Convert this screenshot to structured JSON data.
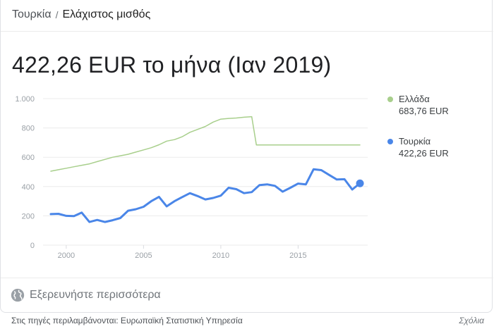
{
  "breadcrumb": {
    "country": "Τουρκία",
    "separator": "/",
    "topic": "Ελάχιστος μισθός"
  },
  "headline": "422,26 EUR το μήνα (Ιαν 2019)",
  "legend": [
    {
      "name": "Ελλάδα",
      "value": "683,76 EUR",
      "color": "#a8cf8c"
    },
    {
      "name": "Τουρκία",
      "value": "422,26 EUR",
      "color": "#4a86e8"
    }
  ],
  "explore": {
    "label": "Εξερευνήστε περισσότερα",
    "icon": "globe-icon"
  },
  "footer": {
    "sources": "Στις πηγές περιλαμβάνονται: Ευρωπαϊκή Στατιστική Υπηρεσία",
    "feedback": "Σχόλια"
  },
  "chart_data": {
    "type": "line",
    "title": "",
    "xlabel": "",
    "ylabel": "",
    "xlim": [
      1998.5,
      2019.5
    ],
    "ylim": [
      0,
      1000
    ],
    "y_ticks": [
      0,
      200,
      400,
      600,
      800,
      1000
    ],
    "y_tick_labels": [
      "0",
      "200",
      "400",
      "600",
      "800",
      "1.000"
    ],
    "x_ticks": [
      2000,
      2005,
      2010,
      2015
    ],
    "x_tick_labels": [
      "2000",
      "2005",
      "2010",
      "2015"
    ],
    "grid": true,
    "legend_position": "right",
    "series": [
      {
        "name": "Ελλάδα",
        "color": "#a8cf8c",
        "x": [
          1999.0,
          1999.5,
          2000.0,
          2000.5,
          2001.0,
          2001.5,
          2002.0,
          2002.5,
          2003.0,
          2003.5,
          2004.0,
          2004.5,
          2005.0,
          2005.5,
          2006.0,
          2006.5,
          2007.0,
          2007.5,
          2008.0,
          2008.5,
          2009.0,
          2009.5,
          2010.0,
          2010.5,
          2011.0,
          2011.5,
          2012.0,
          2012.3,
          2013.0,
          2014.0,
          2015.0,
          2016.0,
          2017.0,
          2018.0,
          2019.0
        ],
        "values": [
          505,
          515,
          525,
          535,
          545,
          555,
          570,
          585,
          600,
          610,
          620,
          635,
          650,
          665,
          685,
          710,
          720,
          740,
          770,
          790,
          810,
          840,
          860,
          865,
          868,
          873,
          877,
          684,
          684,
          684,
          684,
          684,
          684,
          684,
          684
        ]
      },
      {
        "name": "Τουρκία",
        "color": "#4a86e8",
        "x": [
          1999.0,
          1999.5,
          2000.0,
          2000.5,
          2001.0,
          2001.5,
          2002.0,
          2002.5,
          2003.0,
          2003.5,
          2004.0,
          2004.5,
          2005.0,
          2005.5,
          2006.0,
          2006.5,
          2007.0,
          2007.5,
          2008.0,
          2008.5,
          2009.0,
          2009.5,
          2010.0,
          2010.5,
          2011.0,
          2011.5,
          2012.0,
          2012.5,
          2013.0,
          2013.5,
          2014.0,
          2014.5,
          2015.0,
          2015.5,
          2016.0,
          2016.5,
          2017.0,
          2017.5,
          2018.0,
          2018.5,
          2019.0
        ],
        "values": [
          212,
          214,
          200,
          198,
          222,
          158,
          172,
          158,
          170,
          185,
          235,
          245,
          262,
          300,
          330,
          265,
          300,
          328,
          355,
          335,
          312,
          322,
          338,
          392,
          382,
          355,
          362,
          410,
          415,
          405,
          365,
          392,
          420,
          415,
          518,
          512,
          480,
          448,
          450,
          380,
          422
        ]
      }
    ]
  }
}
